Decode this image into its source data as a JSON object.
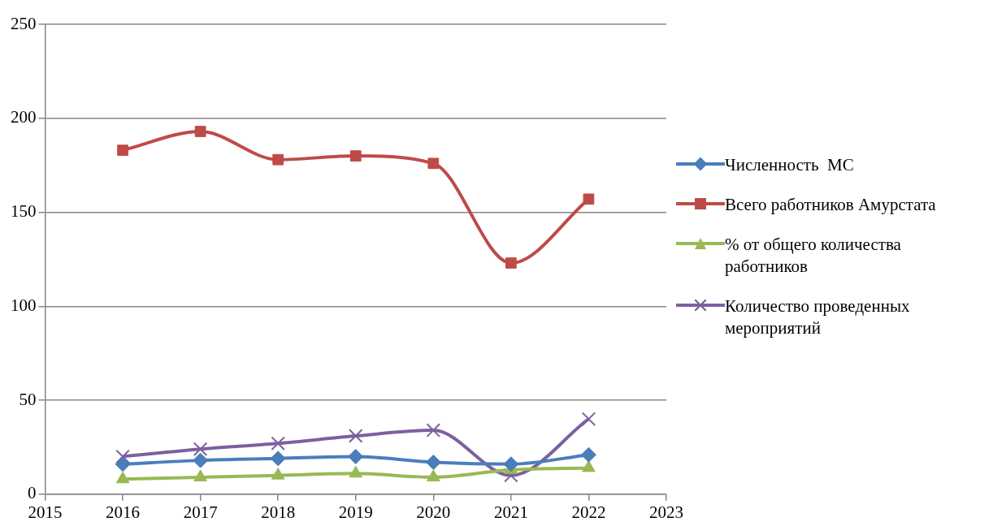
{
  "chart_data": {
    "type": "line",
    "x": [
      2016,
      2017,
      2018,
      2019,
      2020,
      2021,
      2022
    ],
    "series": [
      {
        "name": "Численность  МС",
        "color": "#4a7ebb",
        "marker": "diamond",
        "values": [
          16,
          18,
          19,
          20,
          17,
          16,
          21
        ]
      },
      {
        "name": "Всего работников Амурстата",
        "color": "#be4b48",
        "marker": "square",
        "values": [
          183,
          193,
          178,
          180,
          176,
          123,
          157
        ]
      },
      {
        "name": "% от общего количества работников",
        "color": "#98b954",
        "marker": "triangle",
        "values": [
          8,
          9,
          10,
          11,
          9,
          13,
          14
        ]
      },
      {
        "name": "Количество проведенных мероприятий",
        "color": "#7d60a0",
        "marker": "cross",
        "values": [
          20,
          24,
          27,
          31,
          34,
          10,
          40
        ]
      }
    ],
    "xlim": [
      2015,
      2023
    ],
    "xticks": [
      2015,
      2016,
      2017,
      2018,
      2019,
      2020,
      2021,
      2022,
      2023
    ],
    "ylim": [
      0,
      250
    ],
    "yticks": [
      0,
      50,
      100,
      150,
      200,
      250
    ],
    "grid": "y",
    "legend": "right"
  }
}
